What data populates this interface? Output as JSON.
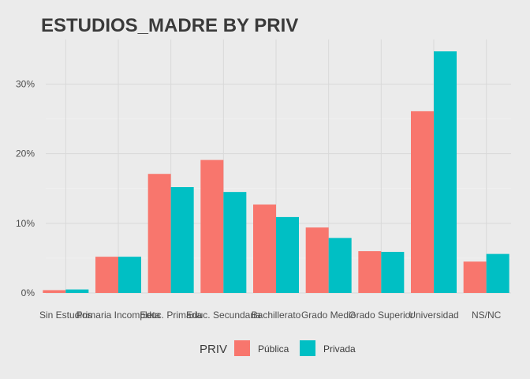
{
  "chart_data": {
    "type": "bar",
    "title": "ESTUDIOS_MADRE BY PRIV",
    "xlabel": "",
    "ylabel": "",
    "categories": [
      "Sin Estudios",
      "Primaria Incompleta",
      "Educ. Primaria",
      "Educ. Secundaria",
      "Bachillerato",
      "Grado Medio",
      "Grado Superior",
      "Universidad",
      "NS/NC"
    ],
    "series": [
      {
        "name": "Pública",
        "color": "#f8766d",
        "values": [
          0.4,
          5.2,
          17.1,
          19.1,
          12.7,
          9.4,
          6.0,
          26.1,
          4.5
        ]
      },
      {
        "name": "Privada",
        "color": "#00bfc4",
        "values": [
          0.5,
          5.2,
          15.2,
          14.5,
          10.9,
          7.9,
          5.9,
          34.7,
          5.6
        ]
      }
    ],
    "y_ticks": [
      0,
      10,
      20,
      30
    ],
    "y_tick_labels": [
      "0%",
      "10%",
      "20%",
      "30%"
    ],
    "ylim": [
      0,
      36
    ],
    "grid": true,
    "legend": {
      "title": "PRIV",
      "position": "bottom"
    }
  }
}
